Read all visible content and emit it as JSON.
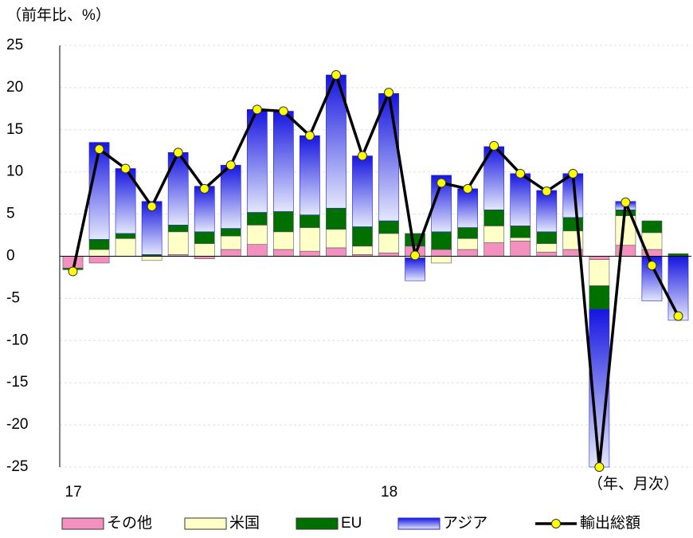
{
  "chart_data": {
    "type": "bar-line",
    "y_label": "（前年比、%）",
    "x_note": "（年、月次）",
    "categories": [
      "17",
      null,
      null,
      null,
      null,
      null,
      null,
      null,
      null,
      null,
      null,
      null,
      "18",
      null,
      null,
      null,
      null,
      null,
      null,
      null,
      null,
      null,
      null,
      null
    ],
    "ylim": [
      -25,
      25
    ],
    "yticks": [
      -25,
      -20,
      -15,
      -10,
      -5,
      0,
      5,
      10,
      15,
      20,
      25
    ],
    "grid": true,
    "series": [
      {
        "name": "その他",
        "type": "bar",
        "color": "#f490c0",
        "values": [
          -1.4,
          -0.8,
          0,
          0,
          0.2,
          -0.3,
          0.8,
          1.4,
          0.8,
          0.6,
          1.0,
          0.2,
          0.4,
          1.2,
          0.8,
          0.8,
          1.6,
          1.8,
          0.5,
          0.8,
          -0.4,
          1.3,
          0.8,
          0
        ]
      },
      {
        "name": "米国",
        "type": "bar",
        "color": "#ffffc8",
        "values": [
          0,
          0.8,
          2.1,
          -0.5,
          2.7,
          1.5,
          1.6,
          2.3,
          2.1,
          2.8,
          2.2,
          1.0,
          2.3,
          -0.2,
          -0.8,
          1.3,
          2.0,
          0.4,
          1.0,
          2.2,
          -3.1,
          3.5,
          2.0,
          0
        ]
      },
      {
        "name": "EU",
        "type": "bar",
        "color": "#007000",
        "values": [
          -0.2,
          1.2,
          0.6,
          0.2,
          0.8,
          1.4,
          0.9,
          1.5,
          2.4,
          1.5,
          2.5,
          2.3,
          1.5,
          1.5,
          2.1,
          1.3,
          1.9,
          1.4,
          1.4,
          1.6,
          -2.8,
          0.7,
          1.4,
          0.3
        ]
      },
      {
        "name": "アジア",
        "type": "bar",
        "color": "#2020e0",
        "values": [
          0,
          11.5,
          7.7,
          6.3,
          8.6,
          5.4,
          7.5,
          12.2,
          11.9,
          9.4,
          15.8,
          8.4,
          15.1,
          -2.7,
          6.7,
          4.6,
          7.5,
          6.2,
          4.9,
          5.2,
          -18.7,
          1.0,
          -5.3,
          -7.6
        ]
      },
      {
        "name": "輸出総額",
        "type": "line",
        "color": "#000000",
        "marker_color": "#ffff00",
        "values": [
          -1.8,
          12.7,
          10.4,
          5.9,
          12.3,
          8.0,
          10.8,
          17.4,
          17.2,
          14.3,
          21.5,
          11.9,
          19.4,
          0.1,
          8.7,
          8.0,
          13.1,
          9.8,
          7.7,
          9.8,
          -25.0,
          6.4,
          -1.1,
          -7.1
        ]
      }
    ]
  }
}
